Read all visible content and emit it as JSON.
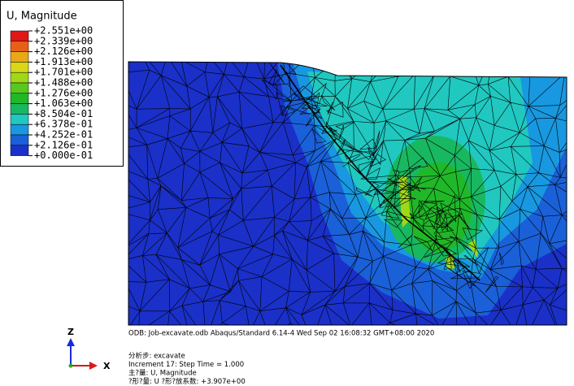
{
  "legend": {
    "title": "U, Magnitude",
    "labels": [
      "+2.551e+00",
      "+2.339e+00",
      "+2.126e+00",
      "+1.913e+00",
      "+1.701e+00",
      "+1.488e+00",
      "+1.276e+00",
      "+1.063e+00",
      "+8.504e-01",
      "+6.378e-01",
      "+4.252e-01",
      "+2.126e-01",
      "+0.000e-01"
    ],
    "colors": [
      "#e01818",
      "#e86018",
      "#e8a818",
      "#d8d818",
      "#a0d818",
      "#58c820",
      "#20b828",
      "#18b860",
      "#20c8c0",
      "#1898e0",
      "#1a60d8",
      "#1a30c8"
    ]
  },
  "triad": {
    "z": "Z",
    "x": "X"
  },
  "footer": {
    "odb": "ODB: Job-excavate.odb    Abaqus/Standard 6.14-4    Wed Sep 02 16:08:32 GMT+08:00 2020",
    "lines": [
      "分析步: excavate",
      "Increment     17: Step Time =    1.000",
      "主?量: U, Magnitude",
      "?形?量: U   ?形?放系数: +3.907e+00"
    ]
  }
}
